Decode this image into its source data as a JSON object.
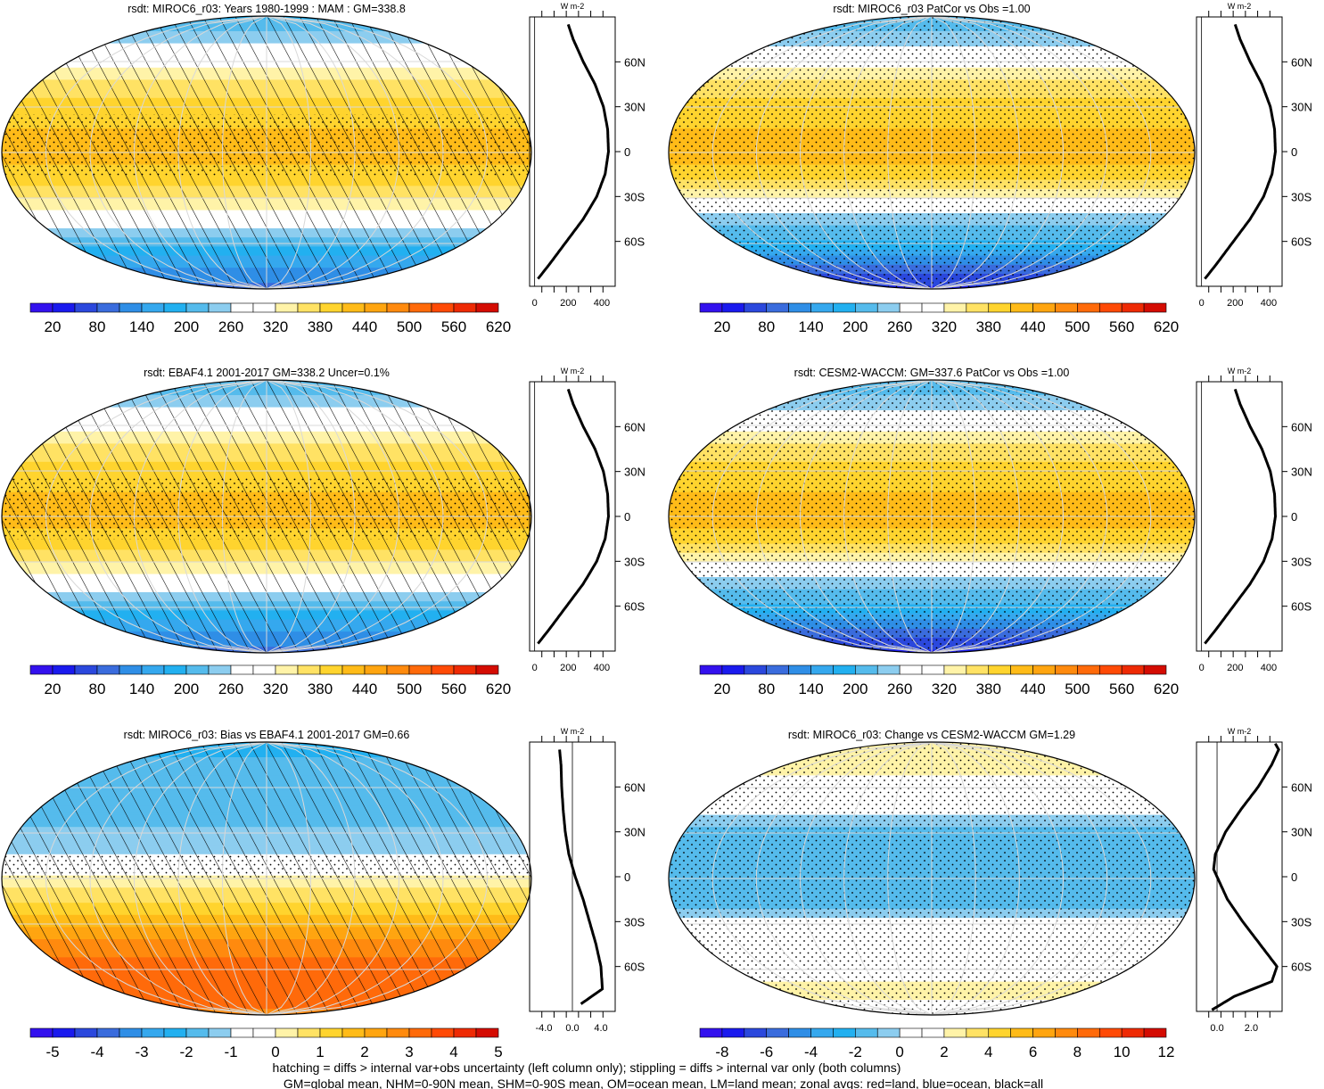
{
  "footer": {
    "line1": "hatching = diffs > internal var+obs uncertainty (left column only); stippling = diffs > internal var only (both columns)",
    "line2": "GM=global mean, NHM=0-90N mean, SHM=0-90S mean, OM=ocean mean, LM=land mean; zonal avgs: red=land, blue=ocean, black=all"
  },
  "colors": {
    "palette": [
      "#3311ee",
      "#1a1aee",
      "#2b48dd",
      "#3a6cdd",
      "#2f8ee6",
      "#35a8ee",
      "#22b0f0",
      "#55bbec",
      "#8ccdef",
      "#ffffff",
      "#ffffff",
      "#fff3a8",
      "#ffe264",
      "#ffd42e",
      "#ffbb18",
      "#ffa510",
      "#ff8a0e",
      "#ff6a0a",
      "#ff4a06",
      "#ee2a04",
      "#d40c02"
    ],
    "hatch": "#000000",
    "grid": "#d8d8d8",
    "land_line": "red",
    "ocean_line": "blue",
    "all_line": "black"
  },
  "chart_data": [
    {
      "type": "heatmap",
      "title": "rsdt: MIROC6_r03: Years 1980-1999 : MAM : GM=338.8",
      "colorbar_ticks": [
        "20",
        "80",
        "140",
        "200",
        "260",
        "320",
        "380",
        "440",
        "500",
        "560",
        "620"
      ],
      "colorbar_range": [
        -10,
        650
      ],
      "field_lat": [
        90,
        75,
        60,
        45,
        30,
        15,
        0,
        -15,
        -30,
        -45,
        -60,
        -75,
        -90
      ],
      "field_values": [
        200,
        260,
        320,
        380,
        410,
        430,
        440,
        420,
        370,
        300,
        220,
        150,
        100
      ],
      "hatched": true,
      "stippled_lat": [
        -15,
        25
      ],
      "profile": {
        "xticks": [
          "0",
          "200",
          "400"
        ],
        "xrange": [
          -30,
          480
        ],
        "ylabels": [
          "60N",
          "30N",
          "0",
          "30S",
          "60S"
        ],
        "yvalues": [
          60,
          30,
          0,
          -30,
          -60
        ],
        "lat": [
          85,
          75,
          60,
          45,
          30,
          15,
          0,
          -15,
          -30,
          -45,
          -60,
          -75,
          -85
        ],
        "all": [
          200,
          230,
          290,
          360,
          410,
          435,
          440,
          420,
          370,
          290,
          190,
          90,
          20
        ]
      }
    },
    {
      "type": "heatmap",
      "title": "rsdt: MIROC6_r03 PatCor vs Obs =1.00",
      "colorbar_ticks": [
        "20",
        "80",
        "140",
        "200",
        "260",
        "320",
        "380",
        "440",
        "500",
        "560",
        "620"
      ],
      "colorbar_range": [
        -10,
        650
      ],
      "field_lat": [
        90,
        75,
        60,
        45,
        30,
        15,
        0,
        -15,
        -30,
        -45,
        -60,
        -75,
        -90
      ],
      "field_values": [
        220,
        250,
        320,
        380,
        410,
        430,
        440,
        420,
        330,
        250,
        200,
        110,
        40
      ],
      "hatched": false,
      "stippled_lat": [
        -90,
        90
      ],
      "profile": {
        "xticks": [
          "0",
          "200",
          "400"
        ],
        "xrange": [
          -30,
          480
        ],
        "ylabels": [
          "60N",
          "30N",
          "0",
          "30S",
          "60S"
        ],
        "yvalues": [
          60,
          30,
          0,
          -30,
          -60
        ],
        "lat": [
          85,
          75,
          60,
          45,
          30,
          15,
          0,
          -15,
          -30,
          -45,
          -60,
          -75,
          -85
        ],
        "all": [
          200,
          230,
          290,
          360,
          410,
          435,
          440,
          420,
          370,
          290,
          190,
          90,
          20
        ]
      }
    },
    {
      "type": "heatmap",
      "title": "rsdt: EBAF4.1 2001-2017 GM=338.2 Uncer=0.1%",
      "colorbar_ticks": [
        "20",
        "80",
        "140",
        "200",
        "260",
        "320",
        "380",
        "440",
        "500",
        "560",
        "620"
      ],
      "colorbar_range": [
        -10,
        650
      ],
      "field_lat": [
        90,
        75,
        60,
        45,
        30,
        15,
        0,
        -15,
        -30,
        -45,
        -60,
        -75,
        -90
      ],
      "field_values": [
        210,
        260,
        320,
        380,
        410,
        430,
        440,
        420,
        370,
        300,
        220,
        150,
        100
      ],
      "hatched": true,
      "stippled_lat": [
        -15,
        25
      ],
      "profile": {
        "xticks": [
          "0",
          "200",
          "400"
        ],
        "xrange": [
          -30,
          480
        ],
        "ylabels": [
          "60N",
          "30N",
          "0",
          "30S",
          "60S"
        ],
        "yvalues": [
          60,
          30,
          0,
          -30,
          -60
        ],
        "lat": [
          85,
          75,
          60,
          45,
          30,
          15,
          0,
          -15,
          -30,
          -45,
          -60,
          -75,
          -85
        ],
        "all": [
          200,
          230,
          290,
          360,
          410,
          435,
          440,
          420,
          370,
          290,
          190,
          90,
          20
        ]
      }
    },
    {
      "type": "heatmap",
      "title": "rsdt: CESM2-WACCM: GM=337.6 PatCor vs Obs =1.00",
      "colorbar_ticks": [
        "20",
        "80",
        "140",
        "200",
        "260",
        "320",
        "380",
        "440",
        "500",
        "560",
        "620"
      ],
      "colorbar_range": [
        -10,
        650
      ],
      "field_lat": [
        90,
        75,
        60,
        45,
        30,
        15,
        0,
        -15,
        -30,
        -45,
        -60,
        -75,
        -90
      ],
      "field_values": [
        220,
        250,
        320,
        380,
        410,
        430,
        440,
        420,
        330,
        250,
        200,
        110,
        40
      ],
      "hatched": false,
      "stippled_lat": [
        -90,
        90
      ],
      "profile": {
        "xticks": [
          "0",
          "200",
          "400"
        ],
        "xrange": [
          -30,
          480
        ],
        "ylabels": [
          "60N",
          "30N",
          "0",
          "30S",
          "60S"
        ],
        "yvalues": [
          60,
          30,
          0,
          -30,
          -60
        ],
        "lat": [
          85,
          75,
          60,
          45,
          30,
          15,
          0,
          -15,
          -30,
          -45,
          -60,
          -75,
          -85
        ],
        "all": [
          200,
          230,
          290,
          360,
          410,
          435,
          440,
          420,
          370,
          290,
          190,
          90,
          20
        ]
      }
    },
    {
      "type": "heatmap",
      "title": "rsdt: MIROC6_r03: Bias vs EBAF4.1 2001-2017 GM=0.66",
      "colorbar_ticks": [
        "-5",
        "-4",
        "-3",
        "-2",
        "-1",
        "0",
        "1",
        "2",
        "3",
        "4",
        "5"
      ],
      "colorbar_range": [
        -5.25,
        5.75
      ],
      "field_lat": [
        90,
        75,
        60,
        45,
        30,
        15,
        5,
        0,
        -15,
        -30,
        -45,
        -60,
        -75,
        -90
      ],
      "field_values": [
        -1.8,
        -1.5,
        -1.4,
        -1.2,
        -1.0,
        -0.5,
        0.1,
        0.8,
        1.5,
        2.5,
        3.4,
        4.0,
        4.1,
        3.5
      ],
      "hatched": true,
      "stippled_lat": [
        0,
        15
      ],
      "profile": {
        "xticks": [
          "-4.0",
          "0.0",
          "4.0"
        ],
        "xrange": [
          -6,
          6
        ],
        "ylabels": [
          "60N",
          "30N",
          "0",
          "30S",
          "60S"
        ],
        "yvalues": [
          60,
          30,
          0,
          -30,
          -60
        ],
        "lat": [
          85,
          75,
          60,
          45,
          30,
          15,
          0,
          -15,
          -30,
          -45,
          -60,
          -75,
          -85
        ],
        "all": [
          -1.8,
          -1.6,
          -1.5,
          -1.3,
          -1.0,
          -0.5,
          0.4,
          1.5,
          2.4,
          3.3,
          4.0,
          4.2,
          1.2
        ]
      }
    },
    {
      "type": "heatmap",
      "title": "rsdt: MIROC6_r03: Change vs CESM2-WACCM GM=1.29",
      "colorbar_ticks": [
        "-8",
        "-6",
        "-4",
        "-2",
        "0",
        "2",
        "4",
        "6",
        "8",
        "10",
        "12"
      ],
      "colorbar_range": [
        -9,
        13
      ],
      "field_lat": [
        90,
        75,
        60,
        45,
        30,
        15,
        0,
        -15,
        -30,
        -45,
        -60,
        -75,
        -90
      ],
      "field_values": [
        3.5,
        3.5,
        1.5,
        1.0,
        -1.2,
        -1.6,
        -1.4,
        -1.6,
        1.0,
        1.2,
        1.5,
        3.4,
        1.0
      ],
      "hatched": false,
      "stippled_lat": [
        -90,
        90
      ],
      "profile": {
        "xticks": [
          "0.0",
          "2.0"
        ],
        "xrange": [
          -1.2,
          3.8
        ],
        "ylabels": [
          "60N",
          "30N",
          "0",
          "30S",
          "60S"
        ],
        "yvalues": [
          60,
          30,
          0,
          -30,
          -60
        ],
        "lat": [
          89,
          85,
          75,
          60,
          45,
          30,
          15,
          5,
          0,
          -15,
          -30,
          -45,
          -60,
          -70,
          -80,
          -89
        ],
        "all": [
          3.4,
          3.6,
          3.2,
          2.4,
          1.4,
          0.5,
          -0.1,
          -0.2,
          0.0,
          0.6,
          1.5,
          2.5,
          3.5,
          3.2,
          1.0,
          -0.3
        ]
      }
    }
  ]
}
